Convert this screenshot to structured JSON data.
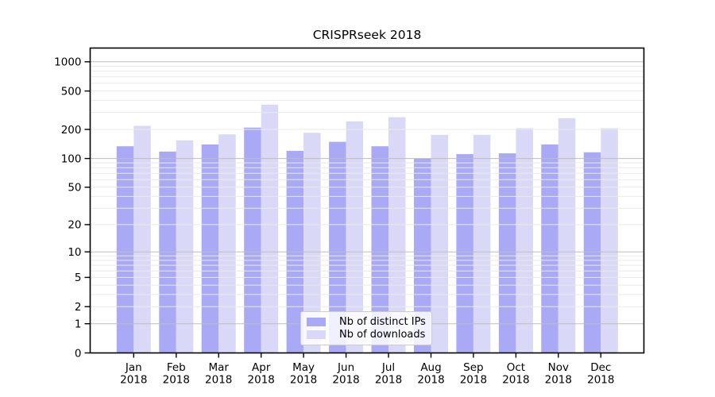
{
  "chart_data": {
    "type": "bar",
    "title": "CRISPRseek 2018",
    "categories": [
      "Jan",
      "Feb",
      "Mar",
      "Apr",
      "May",
      "Jun",
      "Jul",
      "Aug",
      "Sep",
      "Oct",
      "Nov",
      "Dec"
    ],
    "category_year": "2018",
    "series": [
      {
        "name": "Nb of distinct IPs",
        "color": "#a9a9f6",
        "values": [
          134,
          118,
          140,
          209,
          120,
          149,
          134,
          100,
          111,
          113,
          140,
          116
        ]
      },
      {
        "name": "Nb of downloads",
        "color": "#d9d9f7",
        "values": [
          218,
          154,
          178,
          361,
          185,
          243,
          268,
          176,
          176,
          206,
          262,
          206
        ]
      }
    ],
    "yscale": "log1p",
    "yticks": [
      0,
      1,
      2,
      5,
      10,
      20,
      50,
      100,
      200,
      500,
      1000
    ],
    "ylim": [
      0,
      1390
    ],
    "xlabel": "",
    "ylabel": "",
    "grid": true,
    "legend_position": "lower-center"
  },
  "colors": {
    "grid_major": "#bdbdbd",
    "grid_minor": "#e9e9e9",
    "axis_border": "#000000",
    "tick_text": "#000000",
    "legend_border": "#cccccc"
  }
}
